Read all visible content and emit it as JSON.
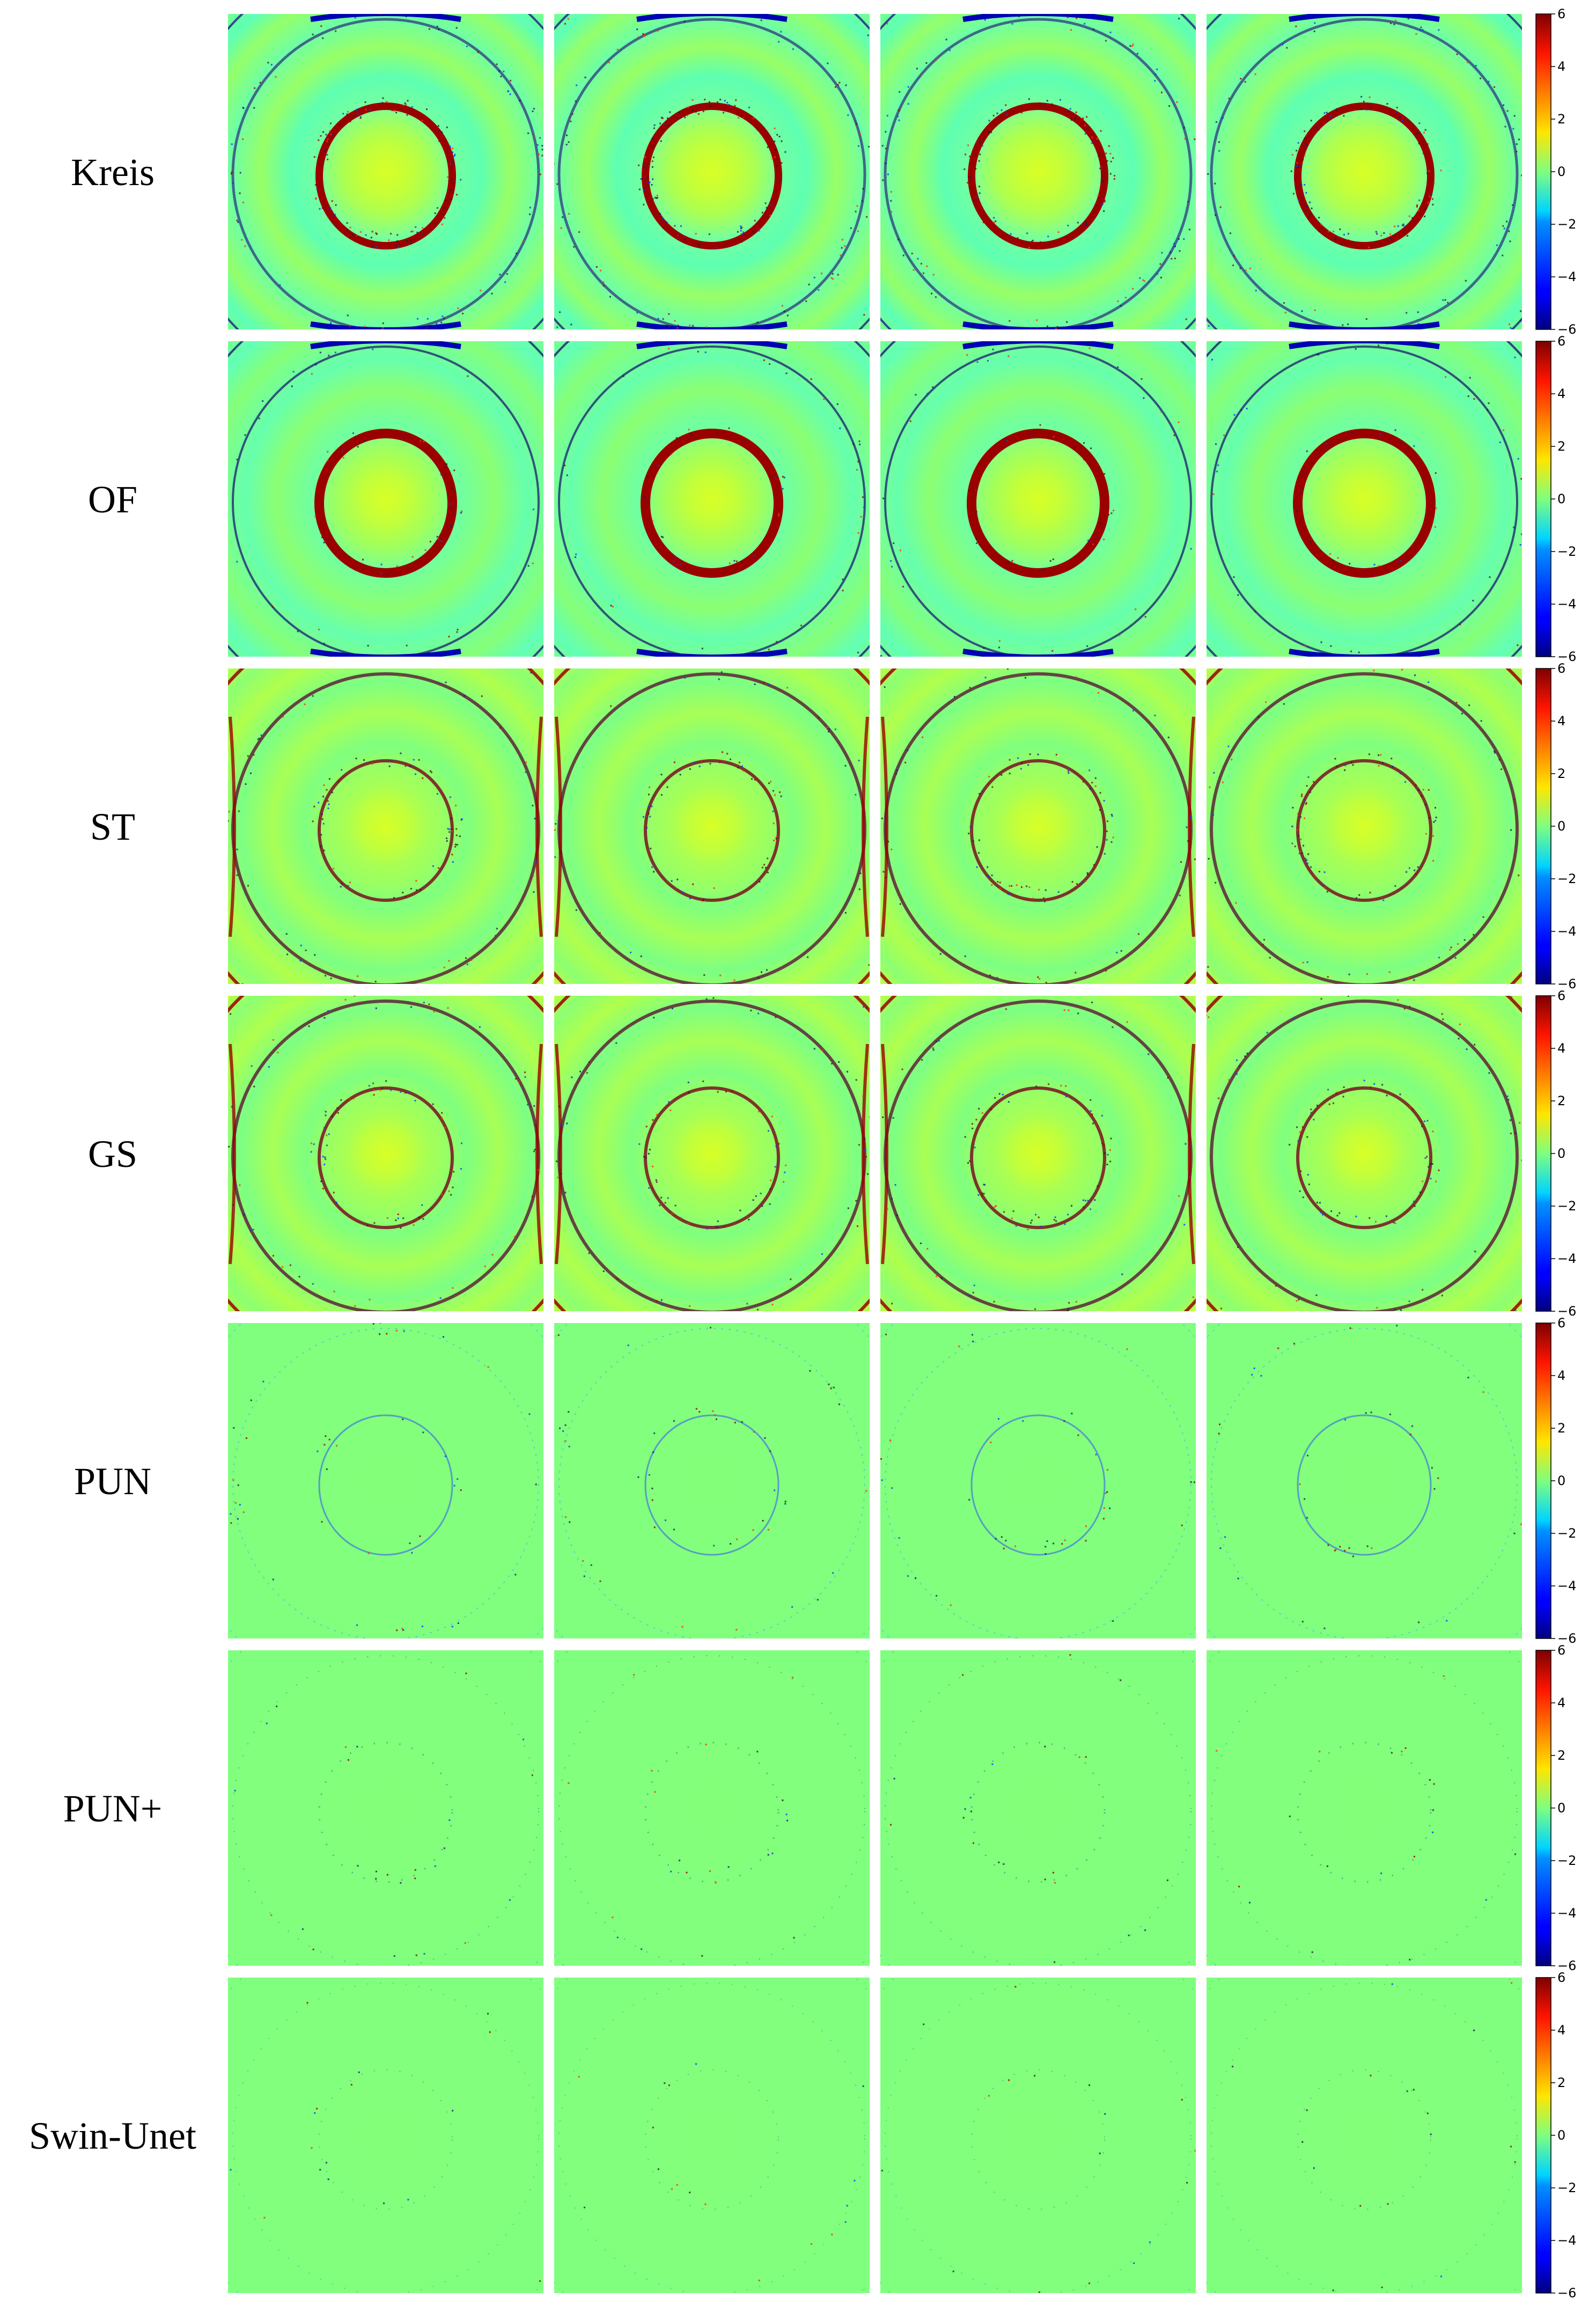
{
  "figure": {
    "rows": [
      {
        "label": "Kreis",
        "profile": "kreis"
      },
      {
        "label": "OF",
        "profile": "of"
      },
      {
        "label": "ST",
        "profile": "st"
      },
      {
        "label": "GS",
        "profile": "st"
      },
      {
        "label": "PUN",
        "profile": "pun"
      },
      {
        "label": "PUN+",
        "profile": "punplus"
      },
      {
        "label": "Swin-Unet",
        "profile": "swin"
      }
    ],
    "columns": 4,
    "colorbar": {
      "colormap": "jet",
      "min": -6,
      "max": 6,
      "ticks": [
        6,
        4,
        2,
        0,
        -2,
        -4,
        -6
      ],
      "tick_labels": [
        "6",
        "4",
        "2",
        "0",
        "−2",
        "−4",
        "−6"
      ]
    },
    "colors": {
      "background_green": "#7fff7f",
      "center_yellow": "#d6ff28",
      "ring_red": "#9b0000",
      "ring_blue": "#0000b4",
      "rim_teal": "#4dffb0"
    }
  }
}
